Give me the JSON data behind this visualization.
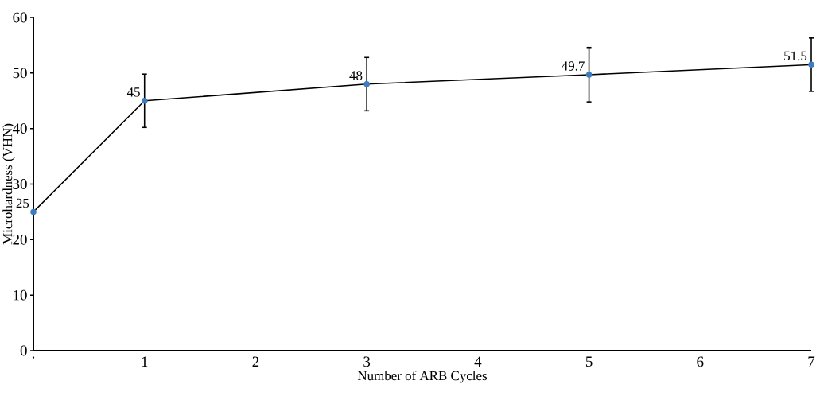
{
  "chart_data": {
    "type": "line",
    "xlabel": "Number of ARB Cycles",
    "ylabel": "Microhardness (VHN)",
    "x": [
      0,
      1,
      3,
      5,
      7
    ],
    "series": [
      {
        "color": "#3b7dc0",
        "values": [
          25,
          45,
          48,
          49.7,
          51.5
        ],
        "errors": [
          null,
          4.8,
          4.8,
          4.9,
          4.8
        ]
      }
    ],
    "xlim": [
      0,
      7
    ],
    "xticks": [
      {
        "value": 0,
        "label": "·"
      },
      1,
      2,
      3,
      4,
      5,
      6,
      7
    ],
    "ylim": [
      0,
      60
    ],
    "yticks": [
      0,
      10,
      20,
      30,
      40,
      50,
      60
    ],
    "data_labels": true,
    "marker": "circle",
    "line_style": "solid"
  }
}
